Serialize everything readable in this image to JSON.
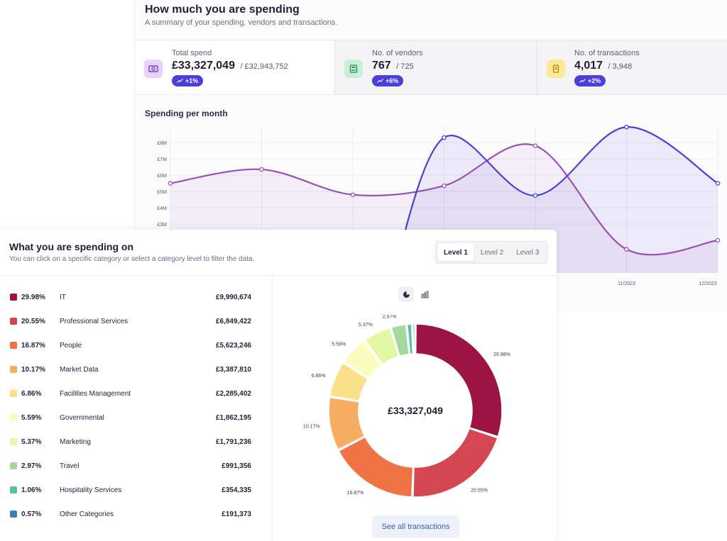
{
  "summary": {
    "title": "How much you are spending",
    "subtitle": "A summary of your spending, vendors and transactions.",
    "stats": [
      {
        "label": "Total spend",
        "value": "£33,327,049",
        "previous": "/ £32,943,752",
        "change": "+1%",
        "icon": "banknote-icon",
        "icon_bg": "#e5d4f7",
        "icon_color": "#7a3fc9"
      },
      {
        "label": "No. of vendors",
        "value": "767",
        "previous": "/ 725",
        "change": "+6%",
        "icon": "building-icon",
        "icon_bg": "#c9efd9",
        "icon_color": "#2e8a55"
      },
      {
        "label": "No. of transactions",
        "value": "4,017",
        "previous": "/ 3,948",
        "change": "+2%",
        "icon": "receipt-icon",
        "icon_bg": "#fde99a",
        "icon_color": "#b58400"
      }
    ]
  },
  "monthly": {
    "title": "Spending per month",
    "x_labels": [
      "11/2023",
      "12/2023"
    ]
  },
  "chart_data": [
    {
      "type": "area",
      "title": "Spending per month",
      "y_ticks": [
        "£3M",
        "£4M",
        "£5M",
        "£6M",
        "£7M",
        "£8M"
      ],
      "ylim": [
        0,
        9
      ],
      "x_count": 7,
      "series": [
        {
          "values": [
            5.5,
            6.35,
            4.8,
            5.35,
            7.8,
            1.45,
            2.0
          ],
          "color": "#9a4fb5"
        },
        {
          "values": [
            null,
            null,
            null,
            8.3,
            4.75,
            8.95,
            5.5
          ],
          "start_y": -1.0,
          "color": "#4a3fd6"
        }
      ],
      "grid": true
    },
    {
      "type": "pie",
      "total_label": "£33,327,049",
      "categories": [
        "IT",
        "Professional Services",
        "People",
        "Market Data",
        "Facilities Management",
        "Governmental",
        "Marketing",
        "Travel",
        "Hospitality Services",
        "Other Categories"
      ],
      "values": [
        29.98,
        20.55,
        16.87,
        10.17,
        6.86,
        5.59,
        5.37,
        2.97,
        1.06,
        0.57
      ],
      "colors": [
        "#9b1443",
        "#d54653",
        "#f07345",
        "#f7ae63",
        "#f9e08a",
        "#fdfcc0",
        "#e4f7a4",
        "#a5d99b",
        "#59bf9e",
        "#3d7fba"
      ],
      "labels": [
        "29.98%",
        "20.55%",
        "16.87%",
        "10.17%",
        "6.86%",
        "5.59%",
        "5.37%",
        "2.97%"
      ]
    }
  ],
  "categories_section": {
    "title": "What you are spending on",
    "subtitle": "You can click on a specific category or select a category level to filter the data.",
    "levels": [
      "Level 1",
      "Level 2",
      "Level 3"
    ],
    "items": [
      {
        "pct": "29.98%",
        "name": "IT",
        "amount": "£9,990,674",
        "color": "#9b1443"
      },
      {
        "pct": "20.55%",
        "name": "Professional Services",
        "amount": "£6,849,422",
        "color": "#d54653"
      },
      {
        "pct": "16.87%",
        "name": "People",
        "amount": "£5,623,246",
        "color": "#f07345"
      },
      {
        "pct": "10.17%",
        "name": "Market Data",
        "amount": "£3,387,810",
        "color": "#f7ae63"
      },
      {
        "pct": "6.86%",
        "name": "Facilities Management",
        "amount": "£2,285,402",
        "color": "#f9e08a"
      },
      {
        "pct": "5.59%",
        "name": "Governmental",
        "amount": "£1,862,195",
        "color": "#fdfcc0"
      },
      {
        "pct": "5.37%",
        "name": "Marketing",
        "amount": "£1,791,236",
        "color": "#e4f7a4"
      },
      {
        "pct": "2.97%",
        "name": "Travel",
        "amount": "£991,356",
        "color": "#a5d99b"
      },
      {
        "pct": "1.06%",
        "name": "Hospitality Services",
        "amount": "£354,335",
        "color": "#59bf9e"
      },
      {
        "pct": "0.57%",
        "name": "Other Categories",
        "amount": "£191,373",
        "color": "#3d7fba"
      }
    ],
    "see_all_label": "See all transactions"
  }
}
